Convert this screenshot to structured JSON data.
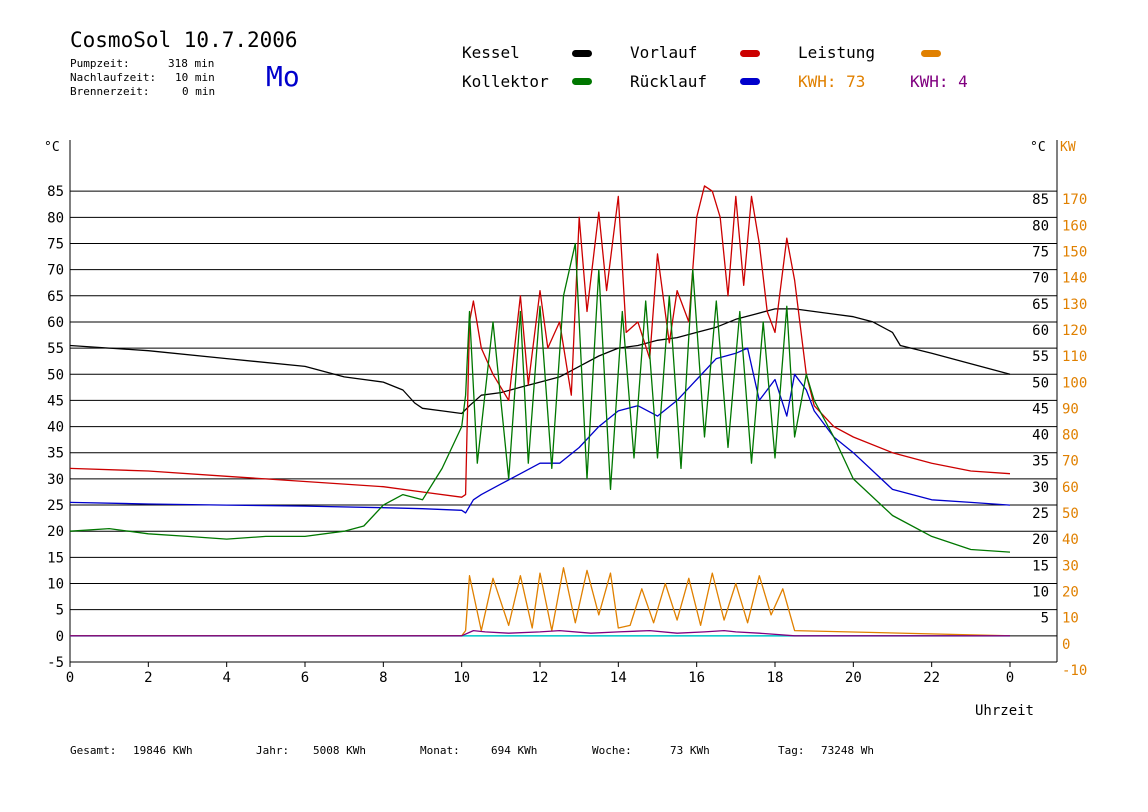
{
  "header": {
    "title": "CosmoSol 10.7.2006",
    "day": "Mo",
    "stats": [
      {
        "label": "Pumpzeit:",
        "value": "318 min"
      },
      {
        "label": "Nachlaufzeit:",
        "value": "10 min"
      },
      {
        "label": "Brennerzeit:",
        "value": "0 min"
      }
    ]
  },
  "legend": {
    "kessel": "Kessel",
    "kollektor": "Kollektor",
    "vorlauf": "Vorlauf",
    "ruecklauf": "Rücklauf",
    "leistung": "Leistung",
    "kwh_orange": "KWH: 73",
    "kwh_purple": "KWH: 4"
  },
  "footer": {
    "gesamt_label": "Gesamt:",
    "gesamt_value": "19846 KWh",
    "jahr_label": "Jahr:",
    "jahr_value": "5008 KWh",
    "monat_label": "Monat:",
    "monat_value": "694 KWh",
    "woche_label": "Woche:",
    "woche_value": "73 KWh",
    "tag_label": "Tag:",
    "tag_value": "73248 Wh"
  },
  "colors": {
    "kessel": "#000000",
    "kollektor": "#007700",
    "vorlauf": "#cc0000",
    "ruecklauf": "#0000cc",
    "leistung": "#e08000",
    "kwh2": "#800080",
    "baseline": "#00cccc",
    "day": "#0000cc"
  },
  "chart_data": {
    "type": "line",
    "xlabel": "Uhrzeit",
    "ylabel": "°C",
    "ylabel_right": "KW",
    "xlim": [
      0,
      24
    ],
    "ylim": [
      -5,
      90
    ],
    "ylim_right": [
      -10,
      180
    ],
    "grid": true,
    "x_ticks": [
      "0",
      "2",
      "4",
      "6",
      "8",
      "10",
      "12",
      "14",
      "16",
      "18",
      "20",
      "22",
      "0"
    ],
    "y_ticks_left": [
      "85",
      "80",
      "75",
      "70",
      "65",
      "60",
      "55",
      "50",
      "45",
      "40",
      "35",
      "30",
      "25",
      "20",
      "15",
      "10",
      "5",
      "0",
      "-5"
    ],
    "y_ticks_left_right": [
      "85",
      "80",
      "75",
      "70",
      "65",
      "60",
      "55",
      "50",
      "45",
      "40",
      "35",
      "30",
      "25",
      "20",
      "15",
      "10",
      "5"
    ],
    "y_ticks_kw": [
      "170",
      "160",
      "150",
      "140",
      "130",
      "120",
      "110",
      "100",
      "90",
      "80",
      "70",
      "60",
      "50",
      "40",
      "30",
      "20",
      "10",
      "0",
      "-10"
    ],
    "series": [
      {
        "name": "Kessel",
        "color_key": "kessel",
        "x": [
          0,
          2,
          4,
          6,
          7,
          8,
          8.5,
          8.8,
          9,
          9.5,
          10,
          10.2,
          10.5,
          11,
          11.5,
          12,
          12.5,
          13,
          13.5,
          14,
          14.5,
          15,
          15.5,
          16,
          16.5,
          17,
          17.5,
          18,
          18.5,
          19,
          19.5,
          20,
          20.5,
          21,
          21.2,
          22,
          23,
          24
        ],
        "y": [
          55.5,
          54.5,
          53,
          51.5,
          49.5,
          48.5,
          47,
          44.5,
          43.5,
          43,
          42.5,
          44,
          46,
          46.5,
          47.5,
          48.5,
          49.5,
          51.5,
          53.5,
          55,
          55.5,
          56.5,
          57,
          58,
          59,
          60.5,
          61.5,
          62.5,
          62.5,
          62,
          61.5,
          61,
          60,
          58,
          55.5,
          54,
          52,
          50
        ]
      },
      {
        "name": "Vorlauf",
        "color_key": "vorlauf",
        "x": [
          0,
          2,
          4,
          6,
          8,
          9,
          10,
          10.1,
          10.2,
          10.3,
          10.5,
          10.8,
          11.2,
          11.5,
          11.7,
          12,
          12.2,
          12.5,
          12.8,
          13,
          13.2,
          13.5,
          13.7,
          14,
          14.2,
          14.5,
          14.8,
          15,
          15.3,
          15.5,
          15.8,
          16,
          16.2,
          16.4,
          16.6,
          16.8,
          17,
          17.2,
          17.4,
          17.6,
          17.8,
          18,
          18.3,
          18.5,
          18.8,
          19,
          19.5,
          20,
          21,
          22,
          23,
          24
        ],
        "y": [
          32,
          31.5,
          30.5,
          29.5,
          28.5,
          27.5,
          26.5,
          27,
          60,
          64,
          55,
          50,
          45,
          65,
          48,
          66,
          55,
          60,
          46,
          80,
          62,
          81,
          66,
          84,
          58,
          60,
          53,
          73,
          56,
          66,
          60,
          80,
          86,
          85,
          80,
          65,
          84,
          67,
          84,
          75,
          62,
          58,
          76,
          68,
          50,
          44,
          40,
          38,
          35,
          33,
          31.5,
          31
        ]
      },
      {
        "name": "Rücklauf",
        "color_key": "ruecklauf",
        "x": [
          0,
          2,
          4,
          6,
          8,
          9,
          10,
          10.1,
          10.3,
          10.5,
          11,
          11.5,
          12,
          12.5,
          13,
          13.5,
          14,
          14.5,
          15,
          15.5,
          16,
          16.5,
          17,
          17.3,
          17.6,
          18,
          18.3,
          18.5,
          18.8,
          19,
          19.5,
          20,
          21,
          22,
          23,
          24
        ],
        "y": [
          25.5,
          25.2,
          25,
          24.8,
          24.5,
          24.3,
          24,
          23.5,
          26,
          27,
          29,
          31,
          33,
          33,
          36,
          40,
          43,
          44,
          42,
          45,
          49,
          53,
          54,
          55,
          45,
          49,
          42,
          50,
          47,
          43,
          38,
          35,
          28,
          26,
          25.5,
          25
        ]
      },
      {
        "name": "Kollektor",
        "color_key": "kollektor",
        "x": [
          0,
          1,
          2,
          3,
          4,
          5,
          6,
          7,
          7.5,
          8,
          8.5,
          9,
          9.5,
          10,
          10.1,
          10.2,
          10.4,
          10.8,
          11.2,
          11.5,
          11.7,
          12,
          12.3,
          12.6,
          12.9,
          13.2,
          13.5,
          13.8,
          14.1,
          14.4,
          14.7,
          15,
          15.3,
          15.6,
          15.9,
          16.2,
          16.5,
          16.8,
          17.1,
          17.4,
          17.7,
          18,
          18.3,
          18.5,
          18.8,
          19,
          19.5,
          20,
          21,
          22,
          23,
          24
        ],
        "y": [
          20,
          20.5,
          19.5,
          19,
          18.5,
          19,
          19,
          20,
          21,
          25,
          27,
          26,
          32,
          40,
          46,
          62,
          33,
          60,
          30,
          62,
          33,
          63,
          32,
          65,
          75,
          30,
          70,
          28,
          62,
          34,
          64,
          34,
          65,
          32,
          70,
          38,
          64,
          36,
          62,
          33,
          60,
          34,
          63,
          38,
          50,
          45,
          38,
          30,
          23,
          19,
          16.5,
          16
        ]
      },
      {
        "name": "Leistung",
        "color_key": "leistung",
        "axis": "kw",
        "x": [
          0,
          10,
          10.1,
          10.2,
          10.5,
          10.8,
          11.2,
          11.5,
          11.8,
          12,
          12.3,
          12.6,
          12.9,
          13.2,
          13.5,
          13.8,
          14,
          14.3,
          14.6,
          14.9,
          15.2,
          15.5,
          15.8,
          16.1,
          16.4,
          16.7,
          17,
          17.3,
          17.6,
          17.9,
          18.2,
          18.5,
          24
        ],
        "y": [
          0,
          0,
          2,
          23,
          2,
          22,
          4,
          23,
          3,
          24,
          2,
          26,
          5,
          25,
          8,
          24,
          3,
          4,
          18,
          5,
          20,
          6,
          22,
          4,
          24,
          6,
          20,
          5,
          23,
          8,
          18,
          2,
          0
        ]
      },
      {
        "name": "KWH: 4",
        "color_key": "kwh2",
        "axis": "kw",
        "x": [
          0,
          10,
          10.3,
          10.6,
          11.2,
          12,
          12.5,
          13.3,
          14,
          14.8,
          15.5,
          16.2,
          16.7,
          17,
          17.6,
          18.5,
          24
        ],
        "y": [
          0,
          0,
          2,
          1.5,
          1,
          1.5,
          2,
          1,
          1.5,
          2,
          1,
          1.5,
          2,
          1.5,
          1,
          0,
          0
        ]
      }
    ]
  }
}
